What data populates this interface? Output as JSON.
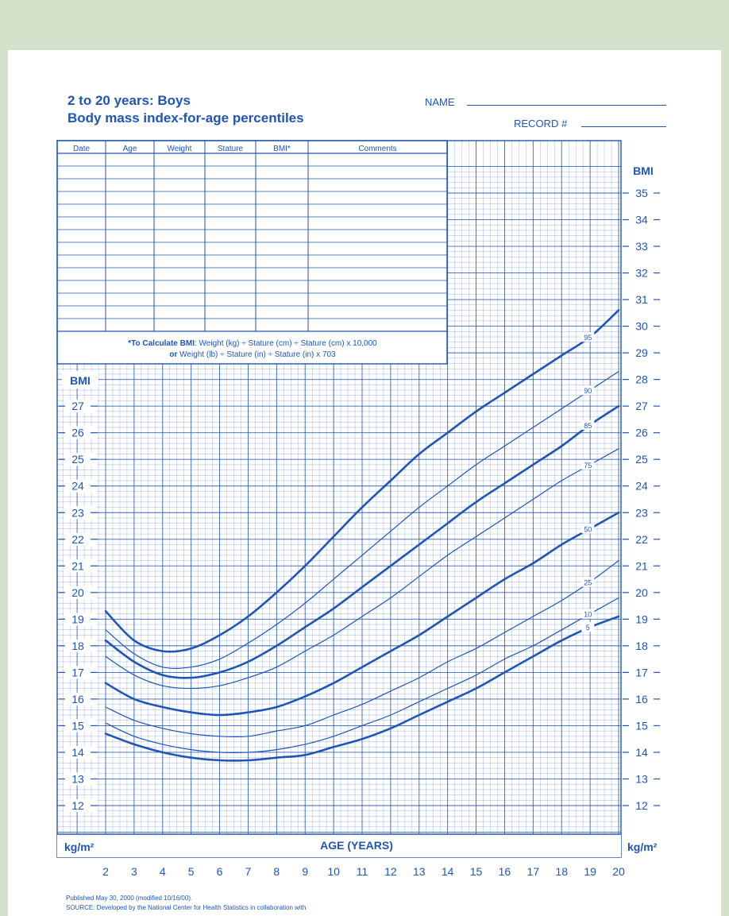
{
  "header": {
    "title_line1": "2 to 20 years: Boys",
    "title_line2": "Body mass index-for-age percentiles",
    "name_label": "NAME",
    "record_label": "RECORD #"
  },
  "record_table": {
    "columns": [
      "Date",
      "Age",
      "Weight",
      "Stature",
      "BMI*",
      "Comments"
    ],
    "note_bold": "*To Calculate BMI",
    "note_line1": ": Weight (kg) ÷ Stature (cm) ÷ Stature (cm) x 10,000",
    "note_or": "or",
    "note_line2": " Weight (lb) ÷ Stature (in) ÷ Stature (in) x 703"
  },
  "footer": {
    "line1": "Published May 30, 2000 (modified 10/16/00).",
    "line2": "SOURCE: Developed by the National Center for Health Statistics in collaboration with"
  },
  "chart_data": {
    "type": "line",
    "xlabel": "AGE (YEARS)",
    "ylabel": "BMI",
    "units_left": "kg/m²",
    "units_right": "kg/m²",
    "xlim": [
      2,
      20
    ],
    "ylim": [
      11,
      36
    ],
    "left_ylim": [
      11,
      28
    ],
    "x_ticks": [
      2,
      3,
      4,
      5,
      6,
      7,
      8,
      9,
      10,
      11,
      12,
      13,
      14,
      15,
      16,
      17,
      18,
      19,
      20
    ],
    "y_ticks_left": [
      12,
      13,
      14,
      15,
      16,
      17,
      18,
      19,
      20,
      21,
      22,
      23,
      24,
      25,
      26,
      27
    ],
    "y_ticks_right": [
      12,
      13,
      14,
      15,
      16,
      17,
      18,
      19,
      20,
      21,
      22,
      23,
      24,
      25,
      26,
      27,
      28,
      29,
      30,
      31,
      32,
      33,
      34,
      35
    ],
    "grid": true,
    "colors": {
      "ink": "#1f55b4",
      "paper": "#ffffff",
      "background": "#d4e2cb"
    },
    "series": [
      {
        "name": "95",
        "bold": true,
        "x": [
          2,
          3,
          4,
          5,
          6,
          7,
          8,
          9,
          10,
          11,
          12,
          13,
          14,
          15,
          16,
          17,
          18,
          19,
          20
        ],
        "values": [
          19.3,
          18.2,
          17.8,
          17.9,
          18.4,
          19.1,
          20.0,
          21.0,
          22.1,
          23.2,
          24.2,
          25.2,
          26.0,
          26.8,
          27.5,
          28.2,
          28.9,
          29.6,
          30.6
        ]
      },
      {
        "name": "90",
        "bold": false,
        "x": [
          2,
          3,
          4,
          5,
          6,
          7,
          8,
          9,
          10,
          11,
          12,
          13,
          14,
          15,
          16,
          17,
          18,
          19,
          20
        ],
        "values": [
          18.6,
          17.7,
          17.2,
          17.2,
          17.5,
          18.1,
          18.8,
          19.6,
          20.5,
          21.4,
          22.3,
          23.2,
          24.0,
          24.8,
          25.5,
          26.2,
          26.9,
          27.6,
          28.3
        ]
      },
      {
        "name": "85",
        "bold": true,
        "x": [
          2,
          3,
          4,
          5,
          6,
          7,
          8,
          9,
          10,
          11,
          12,
          13,
          14,
          15,
          16,
          17,
          18,
          19,
          20
        ],
        "values": [
          18.2,
          17.4,
          16.9,
          16.8,
          17.0,
          17.4,
          18.0,
          18.7,
          19.4,
          20.2,
          21.0,
          21.8,
          22.6,
          23.4,
          24.1,
          24.8,
          25.5,
          26.3,
          27.0
        ]
      },
      {
        "name": "75",
        "bold": false,
        "x": [
          2,
          3,
          4,
          5,
          6,
          7,
          8,
          9,
          10,
          11,
          12,
          13,
          14,
          15,
          16,
          17,
          18,
          19,
          20
        ],
        "values": [
          17.6,
          16.9,
          16.5,
          16.4,
          16.5,
          16.8,
          17.2,
          17.8,
          18.4,
          19.1,
          19.8,
          20.6,
          21.4,
          22.1,
          22.8,
          23.5,
          24.2,
          24.8,
          25.4
        ]
      },
      {
        "name": "50",
        "bold": true,
        "x": [
          2,
          3,
          4,
          5,
          6,
          7,
          8,
          9,
          10,
          11,
          12,
          13,
          14,
          15,
          16,
          17,
          18,
          19,
          20
        ],
        "values": [
          16.6,
          16.0,
          15.7,
          15.5,
          15.4,
          15.5,
          15.7,
          16.1,
          16.6,
          17.2,
          17.8,
          18.4,
          19.1,
          19.8,
          20.5,
          21.1,
          21.8,
          22.4,
          23.0
        ]
      },
      {
        "name": "25",
        "bold": false,
        "x": [
          2,
          3,
          4,
          5,
          6,
          7,
          8,
          9,
          10,
          11,
          12,
          13,
          14,
          15,
          16,
          17,
          18,
          19,
          20
        ],
        "values": [
          15.7,
          15.2,
          14.9,
          14.7,
          14.6,
          14.6,
          14.8,
          15.0,
          15.4,
          15.8,
          16.3,
          16.8,
          17.4,
          17.9,
          18.5,
          19.1,
          19.7,
          20.4,
          21.2
        ]
      },
      {
        "name": "10",
        "bold": false,
        "x": [
          2,
          3,
          4,
          5,
          6,
          7,
          8,
          9,
          10,
          11,
          12,
          13,
          14,
          15,
          16,
          17,
          18,
          19,
          20
        ],
        "values": [
          15.1,
          14.6,
          14.3,
          14.1,
          14.0,
          14.0,
          14.1,
          14.3,
          14.6,
          15.0,
          15.4,
          15.9,
          16.4,
          16.9,
          17.5,
          18.0,
          18.6,
          19.2,
          19.8
        ]
      },
      {
        "name": "5",
        "bold": true,
        "x": [
          2,
          3,
          4,
          5,
          6,
          7,
          8,
          9,
          10,
          11,
          12,
          13,
          14,
          15,
          16,
          17,
          18,
          19,
          20
        ],
        "values": [
          14.7,
          14.3,
          14.0,
          13.8,
          13.7,
          13.7,
          13.8,
          13.9,
          14.2,
          14.5,
          14.9,
          15.4,
          15.9,
          16.4,
          17.0,
          17.6,
          18.2,
          18.7,
          19.1
        ]
      }
    ]
  }
}
